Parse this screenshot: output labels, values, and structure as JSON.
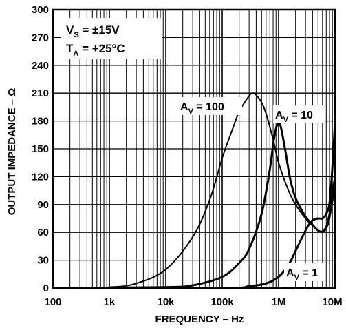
{
  "chart_data": {
    "type": "line",
    "title": "",
    "xlabel": "FREQUENCY – Hz",
    "ylabel": "OUTPUT IMPEDANCE – Ω",
    "x_scale": "log",
    "xlim": [
      100,
      10000000
    ],
    "ylim": [
      0,
      300
    ],
    "grid": true,
    "x_ticks": [
      {
        "value": 100,
        "label": "100"
      },
      {
        "value": 1000,
        "label": "1k"
      },
      {
        "value": 10000,
        "label": "10k"
      },
      {
        "value": 100000,
        "label": "100k"
      },
      {
        "value": 1000000,
        "label": "1M"
      },
      {
        "value": 10000000,
        "label": "10M"
      }
    ],
    "y_ticks": [
      0,
      30,
      60,
      90,
      120,
      150,
      180,
      210,
      240,
      270,
      300
    ],
    "conditions": [
      {
        "symbol": "V",
        "sub": "S",
        "text": " = ±15V"
      },
      {
        "symbol": "T",
        "sub": "A",
        "text": " = +25°C"
      }
    ],
    "series": [
      {
        "name": "AV = 100",
        "label_symbol": "A",
        "label_sub": "V",
        "label_text": " = 100",
        "x": [
          100,
          1000,
          3000,
          10000,
          30000,
          60000,
          100000,
          150000,
          200000,
          300000,
          350000,
          400000,
          500000,
          600000,
          800000,
          1000000,
          1500000,
          2000000,
          3000000,
          4000000,
          5000000,
          6000000,
          7000000,
          8000000,
          10000000
        ],
        "y": [
          0,
          1,
          5,
          20,
          55,
          95,
          140,
          170,
          190,
          207,
          210,
          208,
          200,
          188,
          160,
          135,
          105,
          90,
          75,
          67,
          62,
          60,
          64,
          75,
          110
        ]
      },
      {
        "name": "AV = 10",
        "label_symbol": "A",
        "label_sub": "V",
        "label_text": " = 10",
        "x": [
          100,
          10000,
          30000,
          100000,
          200000,
          300000,
          500000,
          700000,
          800000,
          900000,
          1000000,
          1100000,
          1300000,
          1600000,
          2000000,
          3000000,
          4000000,
          5000000,
          6000000,
          7000000,
          8000000,
          10000000
        ],
        "y": [
          0,
          1,
          3,
          12,
          27,
          42,
          80,
          128,
          155,
          172,
          178,
          173,
          150,
          118,
          97,
          77,
          68,
          62,
          61,
          66,
          80,
          120
        ]
      },
      {
        "name": "AV = 1",
        "label_symbol": "A",
        "label_sub": "V",
        "label_text": " = 1",
        "x": [
          100,
          100000,
          300000,
          600000,
          1000000,
          1500000,
          2000000,
          3000000,
          3500000,
          4000000,
          5000000,
          6000000,
          7000000,
          8000000,
          9000000,
          10000000
        ],
        "y": [
          0,
          0,
          2,
          5,
          12,
          25,
          40,
          62,
          69,
          73,
          75,
          75,
          80,
          92,
          130,
          180
        ]
      }
    ]
  }
}
